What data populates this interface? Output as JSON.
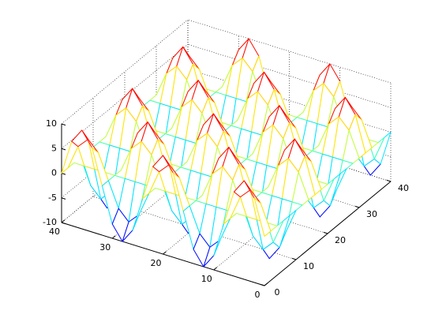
{
  "chart_data": {
    "type": "mesh",
    "colormap": "jet",
    "grid": true,
    "x": [
      0,
      2,
      4,
      6,
      8,
      10,
      12,
      14,
      16,
      18,
      20,
      22,
      24,
      26,
      28,
      30,
      32,
      34,
      36,
      38,
      40
    ],
    "y": [
      0,
      2,
      4,
      6,
      8,
      10,
      12,
      14,
      16,
      18,
      20,
      22,
      24,
      26,
      28,
      30,
      32,
      34,
      36,
      38,
      40
    ],
    "z": [
      [
        0,
        7.1,
        10,
        7.1,
        0,
        -7.1,
        -10,
        -7.1,
        0,
        7.1,
        10,
        7.1,
        0,
        -7.1,
        -10,
        -7.1,
        0,
        7.1,
        10,
        7.1,
        0
      ],
      [
        0,
        5,
        7.1,
        5,
        0,
        -5,
        -7.1,
        -5,
        0,
        5,
        7.1,
        5,
        0,
        -5,
        -7.1,
        -5,
        0,
        5,
        7.1,
        5,
        0
      ],
      [
        0,
        0,
        0,
        0,
        0,
        0,
        0,
        0,
        0,
        0,
        0,
        0,
        0,
        0,
        0,
        0,
        0,
        0,
        0,
        0,
        0
      ],
      [
        0,
        -5,
        -7.1,
        -5,
        0,
        5,
        7.1,
        5,
        0,
        -5,
        -7.1,
        -5,
        0,
        5,
        7.1,
        5,
        0,
        -5,
        -7.1,
        -5,
        0
      ],
      [
        0,
        -7.1,
        -10,
        -7.1,
        0,
        7.1,
        10,
        7.1,
        0,
        -7.1,
        -10,
        -7.1,
        0,
        7.1,
        10,
        7.1,
        0,
        -7.1,
        -10,
        -7.1,
        0
      ],
      [
        0,
        -5,
        -7.1,
        -5,
        0,
        5,
        7.1,
        5,
        0,
        -5,
        -7.1,
        -5,
        0,
        5,
        7.1,
        5,
        0,
        -5,
        -7.1,
        -5,
        0
      ],
      [
        0,
        0,
        0,
        0,
        0,
        0,
        0,
        0,
        0,
        0,
        0,
        0,
        0,
        0,
        0,
        0,
        0,
        0,
        0,
        0,
        0
      ],
      [
        0,
        5,
        7.1,
        5,
        0,
        -5,
        -7.1,
        -5,
        0,
        5,
        7.1,
        5,
        0,
        -5,
        -7.1,
        -5,
        0,
        5,
        7.1,
        5,
        0
      ],
      [
        0,
        7.1,
        10,
        7.1,
        0,
        -7.1,
        -10,
        -7.1,
        0,
        7.1,
        10,
        7.1,
        0,
        -7.1,
        -10,
        -7.1,
        0,
        7.1,
        10,
        7.1,
        0
      ],
      [
        0,
        5,
        7.1,
        5,
        0,
        -5,
        -7.1,
        -5,
        0,
        5,
        7.1,
        5,
        0,
        -5,
        -7.1,
        -5,
        0,
        5,
        7.1,
        5,
        0
      ],
      [
        0,
        0,
        0,
        0,
        0,
        0,
        0,
        0,
        0,
        0,
        0,
        0,
        0,
        0,
        0,
        0,
        0,
        0,
        0,
        0,
        0
      ],
      [
        0,
        -5,
        -7.1,
        -5,
        0,
        5,
        7.1,
        5,
        0,
        -5,
        -7.1,
        -5,
        0,
        5,
        7.1,
        5,
        0,
        -5,
        -7.1,
        -5,
        0
      ],
      [
        0,
        -7.1,
        -10,
        -7.1,
        0,
        7.1,
        10,
        7.1,
        0,
        -7.1,
        -10,
        -7.1,
        0,
        7.1,
        10,
        7.1,
        0,
        -7.1,
        -10,
        -7.1,
        0
      ],
      [
        0,
        -5,
        -7.1,
        -5,
        0,
        5,
        7.1,
        5,
        0,
        -5,
        -7.1,
        -5,
        0,
        5,
        7.1,
        5,
        0,
        -5,
        -7.1,
        -5,
        0
      ],
      [
        0,
        0,
        0,
        0,
        0,
        0,
        0,
        0,
        0,
        0,
        0,
        0,
        0,
        0,
        0,
        0,
        0,
        0,
        0,
        0,
        0
      ],
      [
        0,
        5,
        7.1,
        5,
        0,
        -5,
        -7.1,
        -5,
        0,
        5,
        7.1,
        5,
        0,
        -5,
        -7.1,
        -5,
        0,
        5,
        7.1,
        5,
        0
      ],
      [
        0,
        7.1,
        10,
        7.1,
        0,
        -7.1,
        -10,
        -7.1,
        0,
        7.1,
        10,
        7.1,
        0,
        -7.1,
        -10,
        -7.1,
        0,
        7.1,
        10,
        7.1,
        0
      ],
      [
        0,
        5,
        7.1,
        5,
        0,
        -5,
        -7.1,
        -5,
        0,
        5,
        7.1,
        5,
        0,
        -5,
        -7.1,
        -5,
        0,
        5,
        7.1,
        5,
        0
      ],
      [
        0,
        0,
        0,
        0,
        0,
        0,
        0,
        0,
        0,
        0,
        0,
        0,
        0,
        0,
        0,
        0,
        0,
        0,
        0,
        0,
        0
      ],
      [
        0,
        -5,
        -7.1,
        -5,
        0,
        5,
        7.1,
        5,
        0,
        -5,
        -7.1,
        -5,
        0,
        5,
        7.1,
        5,
        0,
        -5,
        -7.1,
        -5,
        0
      ],
      [
        0,
        -7.1,
        -10,
        -7.1,
        0,
        7.1,
        10,
        7.1,
        0,
        -7.1,
        -10,
        -7.1,
        0,
        7.1,
        10,
        7.1,
        0,
        -7.1,
        -10,
        -7.1,
        0
      ]
    ],
    "xlim": [
      0,
      40
    ],
    "xticks": [
      0,
      10,
      20,
      30,
      40
    ],
    "ylim": [
      0,
      40
    ],
    "yticks": [
      0,
      10,
      20,
      30,
      40
    ],
    "zlim": [
      -10,
      10
    ],
    "zticks": [
      -10,
      -5,
      0,
      5,
      10
    ]
  }
}
